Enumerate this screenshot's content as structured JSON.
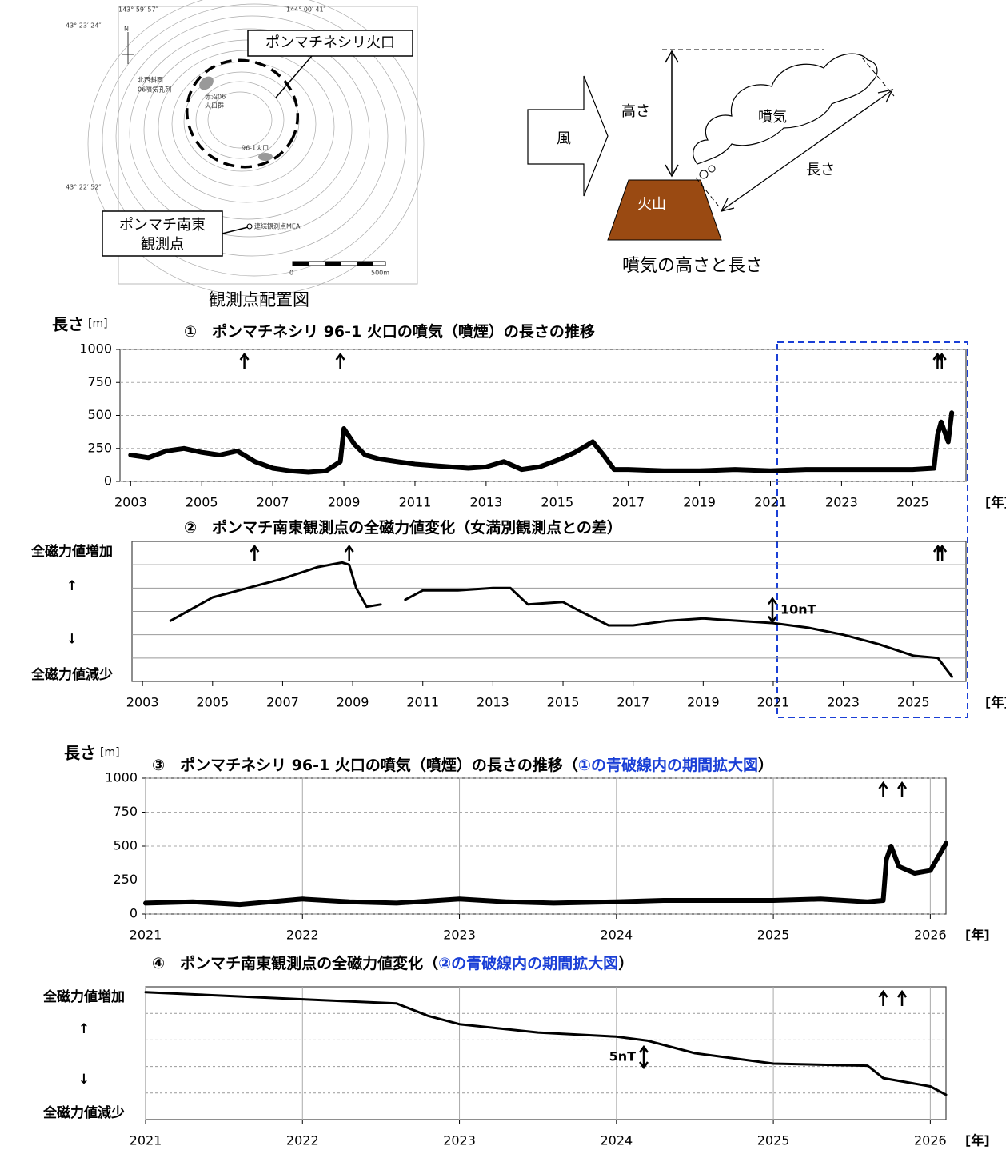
{
  "map": {
    "coords": [
      "143° 59′ 57″",
      "144° 00′ 41″",
      "43° 23′ 24″",
      "43° 22′ 52″"
    ],
    "north": "N",
    "labels": [
      "北西斜面",
      "06噴気孔列",
      "赤沼06",
      "火口群",
      "96-1火口",
      "連続観測点MEA"
    ],
    "scale": [
      "0",
      "500m"
    ],
    "crater_box": "ポンマチネシリ火口",
    "station_box": [
      "ポンマチ南東",
      "観測点"
    ],
    "caption": "観測点配置図"
  },
  "diagram": {
    "wind": "風",
    "height": "高さ",
    "plume": "噴気",
    "length": "長さ",
    "volcano": "火山",
    "caption": "噴気の高さと長さ"
  },
  "chart_data": [
    {
      "type": "line",
      "title_parts": [
        "①　ポンマチネシリ 96-1 火口の噴気（噴煙）の長さの推移"
      ],
      "y_label": "長さ",
      "y_unit": "[m]",
      "x_label": "[年]",
      "color": "#000000",
      "x": [
        2003.0,
        2003.5,
        2004.0,
        2004.5,
        2005.0,
        2005.5,
        2006.0,
        2006.5,
        2007.0,
        2007.5,
        2008.0,
        2008.5,
        2008.9,
        2009.0,
        2009.3,
        2009.6,
        2010.0,
        2010.5,
        2011.0,
        2011.5,
        2012.0,
        2012.5,
        2013.0,
        2013.5,
        2014.0,
        2014.5,
        2015.0,
        2015.5,
        2016.0,
        2016.3,
        2016.6,
        2017.0,
        2018.0,
        2019.0,
        2020.0,
        2021.0,
        2022.0,
        2023.0,
        2024.0,
        2025.0,
        2025.6,
        2025.7,
        2025.8,
        2026.0,
        2026.1
      ],
      "values": [
        200,
        180,
        230,
        250,
        220,
        200,
        230,
        150,
        100,
        80,
        70,
        80,
        150,
        400,
        280,
        200,
        170,
        150,
        130,
        120,
        110,
        100,
        110,
        150,
        90,
        110,
        160,
        220,
        300,
        200,
        90,
        90,
        80,
        80,
        90,
        80,
        90,
        90,
        90,
        90,
        100,
        350,
        450,
        300,
        520
      ],
      "xlim": [
        2002.7,
        2026.5
      ],
      "xticks": [
        2003,
        2005,
        2007,
        2009,
        2011,
        2013,
        2015,
        2017,
        2019,
        2021,
        2023,
        2025
      ],
      "ylim": [
        0,
        1000
      ],
      "yticks": [
        0,
        250,
        500,
        750,
        1000
      ],
      "grid": "y",
      "events": [
        2006.2,
        2008.9,
        2025.7,
        2025.82
      ]
    },
    {
      "type": "line",
      "title_parts": [
        "②　ポンマチ南東観測点の全磁力値変化（女満別観測点との差）"
      ],
      "y_labels": [
        "全磁力値増加",
        "↑",
        "↓",
        "全磁力値減少"
      ],
      "x_label": "[年]",
      "color": "#000000",
      "x": [
        2003.8,
        2005.0,
        2006.0,
        2007.0,
        2008.0,
        2008.7,
        2008.9,
        2009.1,
        2009.4,
        2009.8,
        2009.9,
        2010.5,
        2011.0,
        2012.0,
        2013.0,
        2013.5,
        2014.0,
        2015.0,
        2015.5,
        2016.3,
        2017.0,
        2018.0,
        2019.0,
        2020.0,
        2021.0,
        2022.0,
        2023.0,
        2024.0,
        2025.0,
        2025.7,
        2025.8,
        2026.1
      ],
      "values": [
        -34,
        -24,
        -20,
        -16,
        -11,
        -9,
        -10,
        -20,
        -28,
        -27,
        null,
        -25,
        -21,
        -21,
        -20,
        -20,
        -27,
        -26,
        -30,
        -36,
        -36,
        -34,
        -33,
        -34,
        -35,
        -37,
        -40,
        -44,
        -49,
        -50,
        -52,
        -58
      ],
      "xlim": [
        2002.7,
        2026.5
      ],
      "xticks": [
        2003,
        2005,
        2007,
        2009,
        2011,
        2013,
        2015,
        2017,
        2019,
        2021,
        2023,
        2025
      ],
      "ylim": [
        -60,
        0
      ],
      "scale_bar": {
        "value": 10,
        "label": "10nT"
      },
      "events": [
        2006.2,
        2008.9,
        2025.7,
        2025.82
      ]
    },
    {
      "type": "line",
      "title_parts": [
        "③　ポンマチネシリ 96-1 火口の噴気（噴煙）の長さの推移（",
        "①の青破線内の期間拡大図",
        "）"
      ],
      "y_label": "長さ",
      "y_unit": "[m]",
      "x_label": "[年]",
      "color": "#000000",
      "x": [
        2021.0,
        2021.3,
        2021.6,
        2022.0,
        2022.3,
        2022.6,
        2023.0,
        2023.3,
        2023.6,
        2024.0,
        2024.3,
        2024.6,
        2025.0,
        2025.3,
        2025.6,
        2025.7,
        2025.72,
        2025.75,
        2025.8,
        2025.9,
        2026.0,
        2026.1
      ],
      "values": [
        80,
        90,
        70,
        110,
        90,
        80,
        110,
        90,
        80,
        90,
        100,
        100,
        100,
        110,
        90,
        100,
        400,
        500,
        350,
        300,
        320,
        520
      ],
      "xlim": [
        2021,
        2026.1
      ],
      "xticks": [
        2021,
        2022,
        2023,
        2024,
        2025,
        2026
      ],
      "ylim": [
        0,
        1000
      ],
      "yticks": [
        0,
        250,
        500,
        750,
        1000
      ],
      "grid": "both",
      "events": [
        2025.7,
        2025.82
      ]
    },
    {
      "type": "line",
      "title_parts": [
        "④　ポンマチ南東観測点の全磁力値変化（",
        "②の青破線内の期間拡大図",
        "）"
      ],
      "y_labels": [
        "全磁力値増加",
        "↑",
        "↓",
        "全磁力値減少"
      ],
      "x_label": "[年]",
      "color": "#000000",
      "x": [
        2021.0,
        2022.0,
        2022.6,
        2022.8,
        2023.0,
        2023.5,
        2024.0,
        2024.2,
        2024.5,
        2025.0,
        2025.6,
        2025.7,
        2026.0,
        2026.1
      ],
      "values": [
        -1.3,
        -3,
        -4,
        -7,
        -9,
        -11,
        -12,
        -13,
        -16,
        -18.5,
        -19,
        -22,
        -24,
        -26
      ],
      "xlim": [
        2021,
        2026.1
      ],
      "xticks": [
        2021,
        2022,
        2023,
        2024,
        2025,
        2026
      ],
      "ylim": [
        -32,
        0
      ],
      "grid": "x",
      "scale_bar": {
        "value": 5,
        "label": "5nT"
      },
      "events": [
        2025.7,
        2025.82
      ]
    }
  ]
}
